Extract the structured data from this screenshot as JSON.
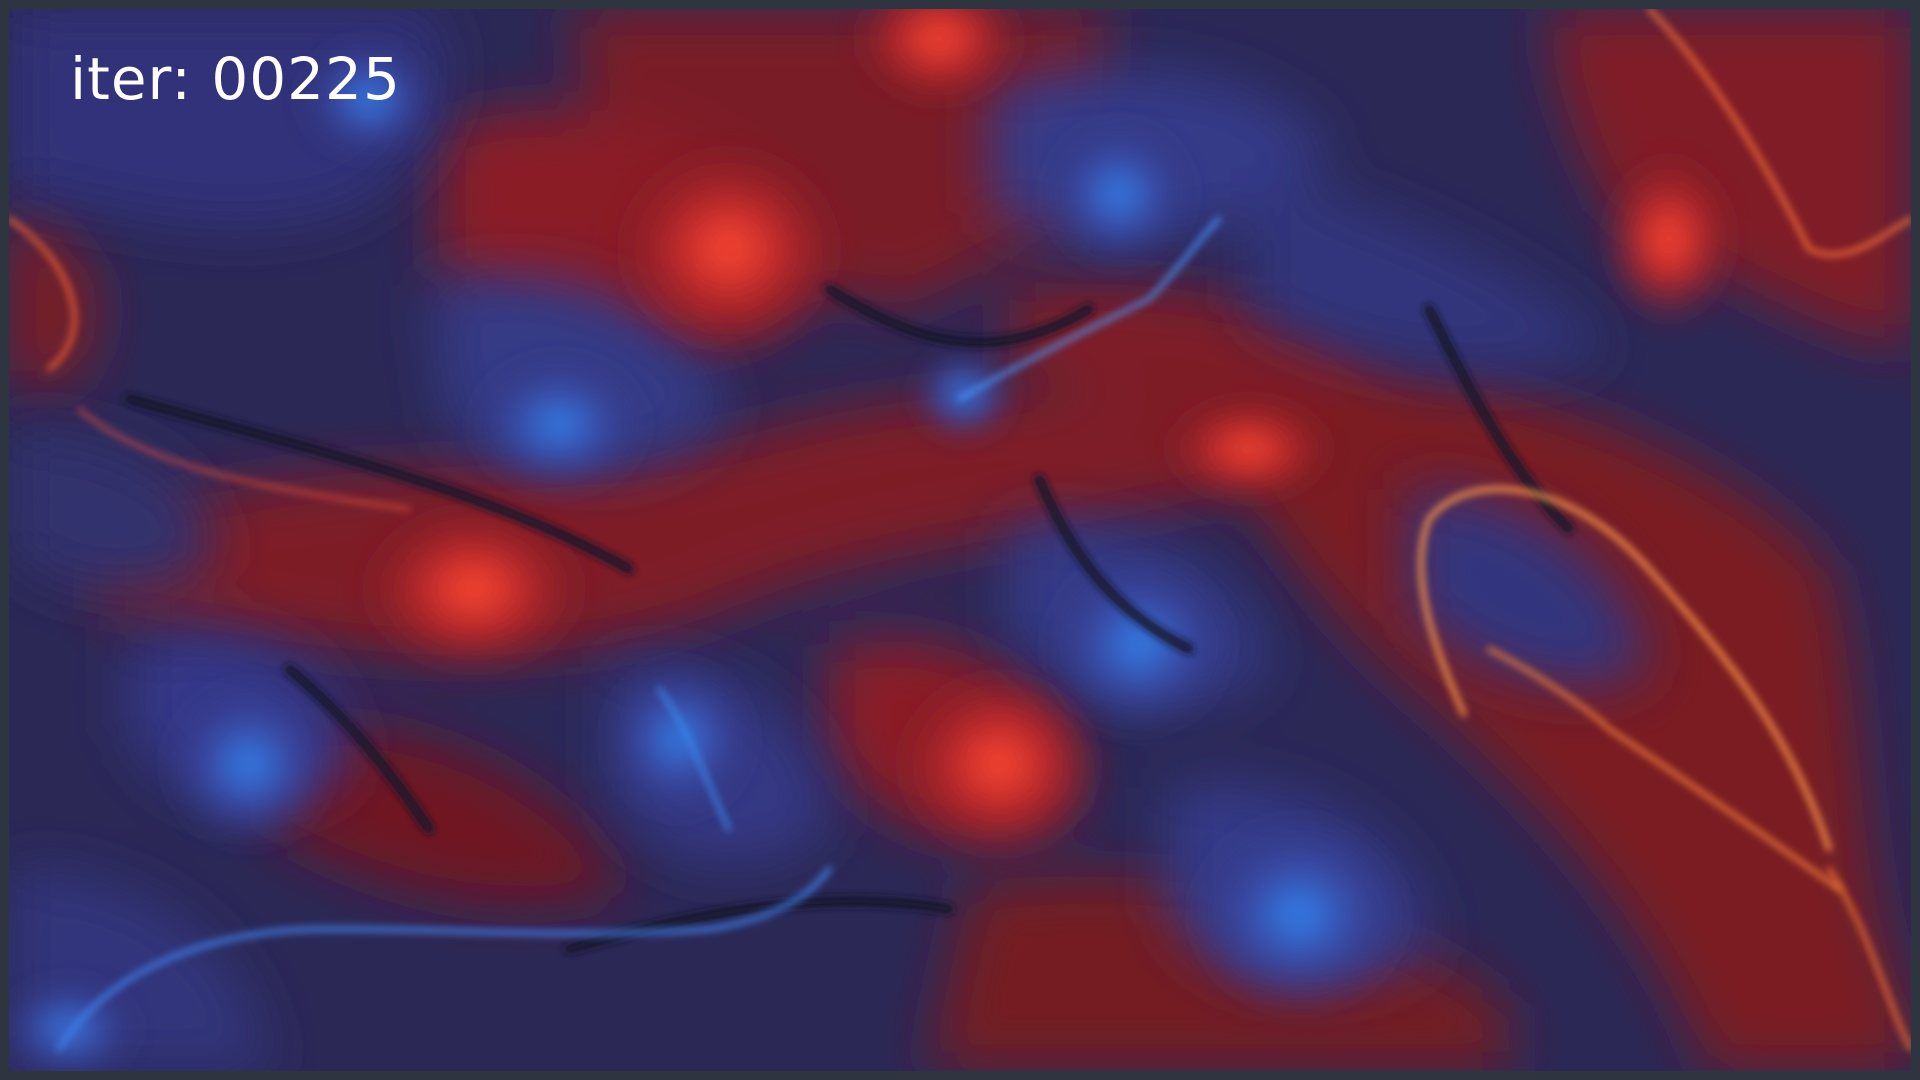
{
  "overlay": {
    "iteration_label": "iter: 00225"
  },
  "colors": {
    "border": "#2e3440",
    "background": "#2a2550",
    "dark_blue": "#2e2a60",
    "indigo": "#3d3f8a",
    "bright_blue": "#2f7fe0",
    "deep_red": "#6e1820",
    "red": "#b22a2e",
    "bright_red": "#e84a2a",
    "orange": "#ff8a3a",
    "text": "#ffffff"
  }
}
